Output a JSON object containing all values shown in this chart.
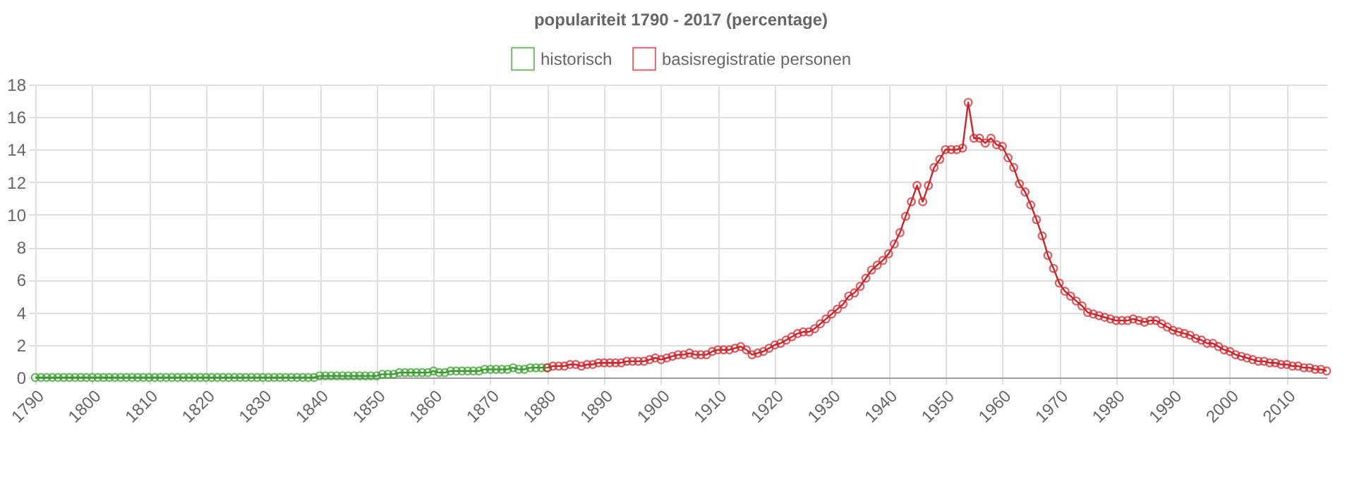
{
  "chart_data": {
    "type": "line",
    "title": "populariteit 1790 - 2017 (percentage)",
    "xlim": [
      1790,
      2017
    ],
    "xticks": [
      1790,
      1800,
      1810,
      1820,
      1830,
      1840,
      1850,
      1860,
      1870,
      1880,
      1890,
      1900,
      1910,
      1920,
      1930,
      1940,
      1950,
      1960,
      1970,
      1980,
      1990,
      2000,
      2010
    ],
    "ylim": [
      0,
      18
    ],
    "yticks": [
      0,
      2,
      4,
      6,
      8,
      10,
      12,
      14,
      16,
      18
    ],
    "grid": true,
    "legend": "top",
    "marker": "circle",
    "line_style": "solid",
    "series": [
      {
        "name": "historisch",
        "color": "#3a9c2e",
        "x": [
          1790,
          1791,
          1792,
          1793,
          1794,
          1795,
          1796,
          1797,
          1798,
          1799,
          1800,
          1801,
          1802,
          1803,
          1804,
          1805,
          1806,
          1807,
          1808,
          1809,
          1810,
          1811,
          1812,
          1813,
          1814,
          1815,
          1816,
          1817,
          1818,
          1819,
          1820,
          1821,
          1822,
          1823,
          1824,
          1825,
          1826,
          1827,
          1828,
          1829,
          1830,
          1831,
          1832,
          1833,
          1834,
          1835,
          1836,
          1837,
          1838,
          1839,
          1840,
          1841,
          1842,
          1843,
          1844,
          1845,
          1846,
          1847,
          1848,
          1849,
          1850,
          1851,
          1852,
          1853,
          1854,
          1855,
          1856,
          1857,
          1858,
          1859,
          1860,
          1861,
          1862,
          1863,
          1864,
          1865,
          1866,
          1867,
          1868,
          1869,
          1870,
          1871,
          1872,
          1873,
          1874,
          1875,
          1876,
          1877,
          1878,
          1879,
          1880
        ],
        "values": [
          0,
          0,
          0,
          0,
          0,
          0,
          0,
          0,
          0,
          0,
          0,
          0,
          0,
          0,
          0,
          0,
          0,
          0,
          0,
          0,
          0,
          0,
          0,
          0,
          0,
          0,
          0,
          0,
          0,
          0,
          0,
          0,
          0,
          0,
          0,
          0,
          0,
          0,
          0,
          0,
          0,
          0,
          0,
          0,
          0,
          0,
          0,
          0,
          0,
          0,
          0.1,
          0.1,
          0.1,
          0.1,
          0.1,
          0.1,
          0.1,
          0.1,
          0.1,
          0.1,
          0.1,
          0.2,
          0.2,
          0.2,
          0.3,
          0.3,
          0.3,
          0.3,
          0.3,
          0.3,
          0.4,
          0.3,
          0.3,
          0.4,
          0.4,
          0.4,
          0.4,
          0.4,
          0.4,
          0.5,
          0.5,
          0.5,
          0.5,
          0.5,
          0.6,
          0.5,
          0.5,
          0.6,
          0.6,
          0.6,
          0.6
        ]
      },
      {
        "name": "basisregistratie personen",
        "color": "#c9262c",
        "x": [
          1880,
          1881,
          1882,
          1883,
          1884,
          1885,
          1886,
          1887,
          1888,
          1889,
          1890,
          1891,
          1892,
          1893,
          1894,
          1895,
          1896,
          1897,
          1898,
          1899,
          1900,
          1901,
          1902,
          1903,
          1904,
          1905,
          1906,
          1907,
          1908,
          1909,
          1910,
          1911,
          1912,
          1913,
          1914,
          1915,
          1916,
          1917,
          1918,
          1919,
          1920,
          1921,
          1922,
          1923,
          1924,
          1925,
          1926,
          1927,
          1928,
          1929,
          1930,
          1931,
          1932,
          1933,
          1934,
          1935,
          1936,
          1937,
          1938,
          1939,
          1940,
          1941,
          1942,
          1943,
          1944,
          1945,
          1946,
          1947,
          1948,
          1949,
          1950,
          1951,
          1952,
          1953,
          1954,
          1955,
          1956,
          1957,
          1958,
          1959,
          1960,
          1961,
          1962,
          1963,
          1964,
          1965,
          1966,
          1967,
          1968,
          1969,
          1970,
          1971,
          1972,
          1973,
          1974,
          1975,
          1976,
          1977,
          1978,
          1979,
          1980,
          1981,
          1982,
          1983,
          1984,
          1985,
          1986,
          1987,
          1988,
          1989,
          1990,
          1991,
          1992,
          1993,
          1994,
          1995,
          1996,
          1997,
          1998,
          1999,
          2000,
          2001,
          2002,
          2003,
          2004,
          2005,
          2006,
          2007,
          2008,
          2009,
          2010,
          2011,
          2012,
          2013,
          2014,
          2015,
          2016,
          2017
        ],
        "values": [
          0.6,
          0.7,
          0.7,
          0.7,
          0.8,
          0.8,
          0.7,
          0.8,
          0.8,
          0.9,
          0.9,
          0.9,
          0.9,
          0.9,
          1.0,
          1.0,
          1.0,
          1.0,
          1.1,
          1.2,
          1.1,
          1.2,
          1.3,
          1.4,
          1.4,
          1.5,
          1.4,
          1.4,
          1.4,
          1.6,
          1.7,
          1.7,
          1.7,
          1.8,
          1.9,
          1.7,
          1.4,
          1.5,
          1.6,
          1.8,
          2.0,
          2.1,
          2.3,
          2.5,
          2.7,
          2.8,
          2.8,
          3.0,
          3.3,
          3.6,
          3.9,
          4.2,
          4.5,
          5.0,
          5.2,
          5.6,
          6.1,
          6.6,
          6.9,
          7.2,
          7.6,
          8.2,
          8.9,
          9.9,
          10.8,
          11.8,
          10.8,
          11.8,
          12.9,
          13.4,
          14.0,
          14.0,
          14.0,
          14.1,
          16.9,
          14.7,
          14.7,
          14.4,
          14.7,
          14.3,
          14.2,
          13.5,
          12.9,
          11.9,
          11.4,
          10.6,
          9.7,
          8.7,
          7.5,
          6.7,
          5.8,
          5.3,
          5.0,
          4.7,
          4.4,
          4.0,
          3.9,
          3.8,
          3.7,
          3.6,
          3.5,
          3.5,
          3.5,
          3.6,
          3.5,
          3.4,
          3.5,
          3.5,
          3.3,
          3.1,
          2.9,
          2.8,
          2.7,
          2.6,
          2.4,
          2.3,
          2.1,
          2.1,
          1.9,
          1.7,
          1.6,
          1.4,
          1.3,
          1.2,
          1.1,
          1.0,
          1.0,
          0.9,
          0.9,
          0.8,
          0.8,
          0.7,
          0.7,
          0.6,
          0.6,
          0.5,
          0.5,
          0.4
        ]
      }
    ]
  }
}
